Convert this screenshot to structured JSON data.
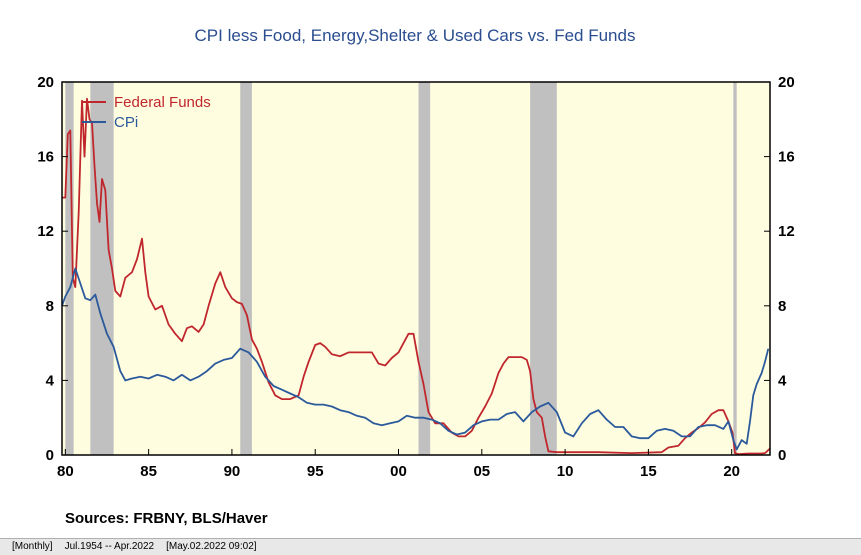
{
  "chart_data": {
    "type": "line",
    "title": "CPI less Food, Energy,Shelter & Used Cars vs. Fed Funds",
    "sources": "Sources:  FRBNY, BLS/Haver",
    "x_range": [
      1979.8,
      2022.3
    ],
    "ylim": [
      0,
      20
    ],
    "y_ticks": [
      0,
      4,
      8,
      12,
      16,
      20
    ],
    "y_tick_labels": [
      "0",
      "4",
      "8",
      "12",
      "16",
      "20"
    ],
    "x_ticks": [
      1980,
      1985,
      1990,
      1995,
      2000,
      2005,
      2010,
      2015,
      2020
    ],
    "x_tick_labels": [
      "80",
      "85",
      "90",
      "95",
      "00",
      "05",
      "10",
      "15",
      "20"
    ],
    "grid": false,
    "legend_position": "top-left",
    "background_color": "#fffde0",
    "recession_color": "#c0c0c0",
    "recessions": [
      [
        1980.0,
        1980.5
      ],
      [
        1981.5,
        1982.9
      ],
      [
        1990.5,
        1991.2
      ],
      [
        2001.2,
        2001.9
      ],
      [
        2007.9,
        2009.5
      ],
      [
        2020.1,
        2020.3
      ]
    ],
    "series": [
      {
        "name": "Federal Funds",
        "color": "#c0272d",
        "x": [
          1979.8,
          1980.0,
          1980.15,
          1980.3,
          1980.45,
          1980.6,
          1980.8,
          1981.0,
          1981.15,
          1981.3,
          1981.45,
          1981.6,
          1981.75,
          1981.9,
          1982.05,
          1982.2,
          1982.4,
          1982.6,
          1982.8,
          1983.0,
          1983.3,
          1983.6,
          1984.0,
          1984.3,
          1984.6,
          1984.8,
          1985.0,
          1985.4,
          1985.8,
          1986.2,
          1986.6,
          1987.0,
          1987.3,
          1987.6,
          1988.0,
          1988.3,
          1988.6,
          1989.0,
          1989.3,
          1989.6,
          1990.0,
          1990.3,
          1990.6,
          1990.9,
          1991.2,
          1991.5,
          1991.8,
          1992.2,
          1992.6,
          1993.0,
          1993.5,
          1994.0,
          1994.3,
          1994.6,
          1995.0,
          1995.3,
          1995.6,
          1996.0,
          1996.5,
          1997.0,
          1997.5,
          1998.0,
          1998.4,
          1998.8,
          1999.2,
          1999.6,
          2000.0,
          2000.3,
          2000.6,
          2000.9,
          2001.2,
          2001.5,
          2001.8,
          2002.2,
          2002.7,
          2003.2,
          2003.6,
          2004.0,
          2004.4,
          2004.8,
          2005.2,
          2005.6,
          2006.0,
          2006.3,
          2006.6,
          2007.0,
          2007.4,
          2007.7,
          2007.9,
          2008.1,
          2008.3,
          2008.6,
          2008.8,
          2009.0,
          2009.5,
          2010.0,
          2012.0,
          2014.0,
          2015.8,
          2016.2,
          2016.8,
          2017.2,
          2017.6,
          2018.0,
          2018.4,
          2018.8,
          2019.2,
          2019.5,
          2019.8,
          2020.05,
          2020.2,
          2020.4,
          2021.0,
          2021.8,
          2022.0,
          2022.3
        ],
        "values": [
          13.8,
          13.8,
          17.2,
          17.4,
          9.5,
          9.0,
          13.0,
          19.0,
          16.0,
          19.1,
          18.0,
          17.8,
          15.5,
          13.5,
          12.5,
          14.8,
          14.2,
          11.0,
          10.0,
          8.8,
          8.5,
          9.5,
          9.8,
          10.5,
          11.6,
          9.8,
          8.5,
          7.8,
          8.0,
          7.0,
          6.5,
          6.1,
          6.8,
          6.9,
          6.6,
          7.0,
          8.0,
          9.2,
          9.8,
          9.0,
          8.4,
          8.2,
          8.1,
          7.5,
          6.2,
          5.7,
          5.0,
          3.9,
          3.2,
          3.0,
          3.0,
          3.2,
          4.2,
          5.0,
          5.9,
          6.0,
          5.8,
          5.4,
          5.3,
          5.5,
          5.5,
          5.5,
          5.5,
          4.9,
          4.8,
          5.2,
          5.5,
          6.0,
          6.5,
          6.5,
          5.0,
          3.8,
          2.3,
          1.7,
          1.7,
          1.2,
          1.0,
          1.0,
          1.3,
          2.0,
          2.6,
          3.3,
          4.4,
          4.9,
          5.25,
          5.25,
          5.25,
          5.1,
          4.5,
          3.0,
          2.3,
          2.0,
          1.0,
          0.2,
          0.15,
          0.15,
          0.15,
          0.1,
          0.15,
          0.4,
          0.5,
          0.9,
          1.2,
          1.45,
          1.75,
          2.2,
          2.4,
          2.4,
          1.8,
          1.2,
          0.1,
          0.05,
          0.08,
          0.08,
          0.1,
          0.35
        ]
      },
      {
        "name": "CPi",
        "color": "#2b5a9c",
        "x": [
          1979.8,
          1980.0,
          1980.3,
          1980.6,
          1980.9,
          1981.2,
          1981.5,
          1981.8,
          1982.1,
          1982.5,
          1982.9,
          1983.3,
          1983.6,
          1984.0,
          1984.5,
          1985.0,
          1985.5,
          1986.0,
          1986.5,
          1987.0,
          1987.5,
          1988.0,
          1988.5,
          1989.0,
          1989.5,
          1990.0,
          1990.5,
          1991.0,
          1991.5,
          1992.0,
          1992.5,
          1993.0,
          1993.5,
          1994.0,
          1994.5,
          1995.0,
          1995.5,
          1996.0,
          1996.5,
          1997.0,
          1997.5,
          1998.0,
          1998.5,
          1999.0,
          1999.5,
          2000.0,
          2000.5,
          2001.0,
          2001.5,
          2002.0,
          2002.5,
          2003.0,
          2003.5,
          2004.0,
          2004.5,
          2005.0,
          2005.5,
          2006.0,
          2006.5,
          2007.0,
          2007.5,
          2008.0,
          2008.5,
          2009.0,
          2009.5,
          2010.0,
          2010.5,
          2011.0,
          2011.5,
          2012.0,
          2012.5,
          2013.0,
          2013.5,
          2014.0,
          2014.5,
          2015.0,
          2015.5,
          2016.0,
          2016.5,
          2017.0,
          2017.5,
          2018.0,
          2018.5,
          2019.0,
          2019.5,
          2019.8,
          2020.1,
          2020.3,
          2020.6,
          2020.9,
          2021.1,
          2021.3,
          2021.5,
          2021.8,
          2022.0,
          2022.2
        ],
        "values": [
          8.0,
          8.5,
          9.0,
          10.0,
          9.2,
          8.4,
          8.3,
          8.6,
          7.6,
          6.5,
          5.8,
          4.5,
          4.0,
          4.1,
          4.2,
          4.1,
          4.3,
          4.2,
          4.0,
          4.3,
          4.0,
          4.2,
          4.5,
          4.9,
          5.1,
          5.2,
          5.7,
          5.5,
          5.0,
          4.2,
          3.7,
          3.5,
          3.3,
          3.1,
          2.8,
          2.7,
          2.7,
          2.6,
          2.4,
          2.3,
          2.1,
          2.0,
          1.7,
          1.6,
          1.7,
          1.8,
          2.1,
          2.0,
          2.0,
          1.9,
          1.7,
          1.3,
          1.1,
          1.2,
          1.6,
          1.8,
          1.9,
          1.9,
          2.2,
          2.3,
          1.8,
          2.3,
          2.6,
          2.8,
          2.3,
          1.2,
          1.0,
          1.7,
          2.2,
          2.4,
          1.9,
          1.5,
          1.5,
          1.0,
          0.9,
          0.9,
          1.3,
          1.4,
          1.3,
          1.0,
          1.0,
          1.5,
          1.6,
          1.6,
          1.4,
          1.8,
          0.8,
          0.3,
          0.8,
          0.6,
          1.8,
          3.2,
          3.8,
          4.4,
          5.0,
          5.7
        ]
      }
    ]
  },
  "status_bar": {
    "frequency": "[Monthly]",
    "range": "Jul.1954 -- Apr.2022",
    "timestamp": "[May.02.2022 09:02]"
  }
}
